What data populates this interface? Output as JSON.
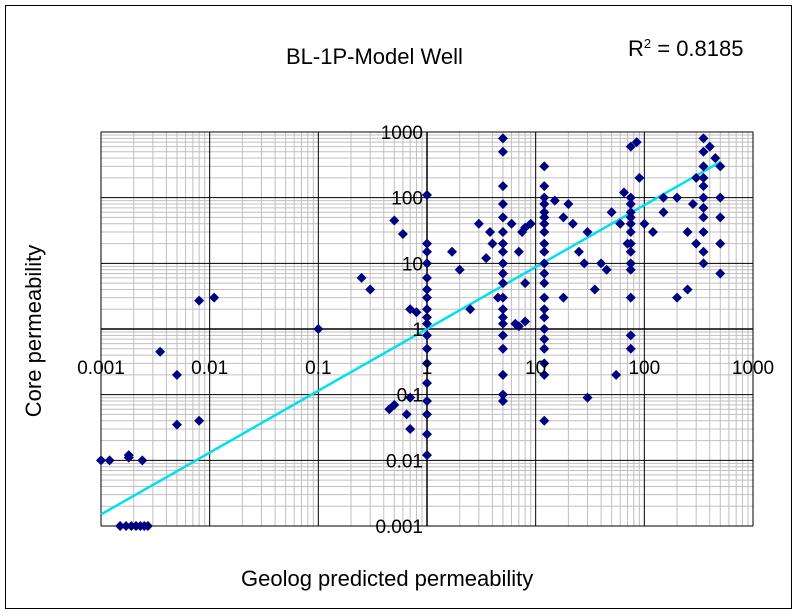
{
  "chart_data": {
    "type": "scatter",
    "title": "BL-1P-Model Well",
    "annotation": {
      "r2_label": "R",
      "r2_sup": "2",
      "r2_value": " = 0.8185"
    },
    "xlabel": "Geolog predicted permeability",
    "ylabel": "Core permeability",
    "xscale": "log",
    "yscale": "log",
    "xlim": [
      0.001,
      1000
    ],
    "ylim": [
      0.001,
      1000
    ],
    "x_ticks": [
      "0.001",
      "0.01",
      "0.1",
      "1",
      "10",
      "100",
      "1000"
    ],
    "y_ticks": [
      "1000",
      "100",
      "10",
      "1",
      "0.1",
      "0.01",
      "0.001"
    ],
    "grid": true,
    "marker_color": "#000080",
    "trend_color": "#00e0f0",
    "trendline": {
      "x": [
        0.001,
        500
      ],
      "y": [
        0.0015,
        350
      ]
    },
    "points": [
      [
        0.001,
        0.01
      ],
      [
        0.0012,
        0.01
      ],
      [
        0.0018,
        0.012
      ],
      [
        0.0018,
        0.011
      ],
      [
        0.0024,
        0.01
      ],
      [
        0.0015,
        0.001
      ],
      [
        0.0017,
        0.001
      ],
      [
        0.0019,
        0.001
      ],
      [
        0.0021,
        0.001
      ],
      [
        0.0023,
        0.001
      ],
      [
        0.0025,
        0.001
      ],
      [
        0.0027,
        0.001
      ],
      [
        0.0035,
        0.45
      ],
      [
        0.005,
        0.2
      ],
      [
        0.005,
        0.035
      ],
      [
        0.008,
        2.7
      ],
      [
        0.011,
        3
      ],
      [
        0.008,
        0.04
      ],
      [
        0.1,
        1
      ],
      [
        0.25,
        6
      ],
      [
        0.3,
        4
      ],
      [
        0.5,
        45
      ],
      [
        0.6,
        28
      ],
      [
        0.7,
        2
      ],
      [
        0.8,
        1.8
      ],
      [
        0.5,
        0.07
      ],
      [
        0.45,
        0.06
      ],
      [
        0.7,
        0.09
      ],
      [
        0.65,
        0.05
      ],
      [
        0.7,
        0.03
      ],
      [
        1,
        110
      ],
      [
        1,
        20
      ],
      [
        1,
        15
      ],
      [
        1,
        10
      ],
      [
        1,
        6
      ],
      [
        1,
        4
      ],
      [
        1,
        3
      ],
      [
        1,
        2
      ],
      [
        1,
        1.5
      ],
      [
        1,
        1.2
      ],
      [
        1,
        0.8
      ],
      [
        1,
        0.5
      ],
      [
        1,
        0.3
      ],
      [
        1,
        0.15
      ],
      [
        1,
        0.08
      ],
      [
        1,
        0.05
      ],
      [
        1,
        0.025
      ],
      [
        1,
        0.012
      ],
      [
        1.7,
        15
      ],
      [
        2,
        8
      ],
      [
        2.5,
        2
      ],
      [
        3,
        40
      ],
      [
        3.5,
        12
      ],
      [
        3.8,
        30
      ],
      [
        5,
        800
      ],
      [
        5,
        500
      ],
      [
        5,
        150
      ],
      [
        5,
        80
      ],
      [
        5,
        50
      ],
      [
        5,
        30
      ],
      [
        5,
        20
      ],
      [
        5,
        15
      ],
      [
        5,
        10
      ],
      [
        5,
        7
      ],
      [
        5,
        5
      ],
      [
        5,
        3
      ],
      [
        5,
        2
      ],
      [
        5,
        1.5
      ],
      [
        5,
        1.2
      ],
      [
        5,
        0.8
      ],
      [
        5,
        0.5
      ],
      [
        5,
        0.2
      ],
      [
        5,
        0.1
      ],
      [
        5,
        0.08
      ],
      [
        4,
        20
      ],
      [
        4.5,
        3
      ],
      [
        6,
        40
      ],
      [
        7,
        15
      ],
      [
        7.5,
        30
      ],
      [
        8,
        5
      ],
      [
        8,
        35
      ],
      [
        9,
        40
      ],
      [
        6.5,
        1.2
      ],
      [
        7,
        1.1
      ],
      [
        8,
        1.3
      ],
      [
        12,
        300
      ],
      [
        12,
        150
      ],
      [
        12,
        100
      ],
      [
        12,
        80
      ],
      [
        12,
        60
      ],
      [
        12,
        50
      ],
      [
        12,
        40
      ],
      [
        12,
        30
      ],
      [
        12,
        20
      ],
      [
        12,
        15
      ],
      [
        12,
        10
      ],
      [
        12,
        7
      ],
      [
        12,
        5
      ],
      [
        12,
        3
      ],
      [
        12,
        2
      ],
      [
        12,
        1.5
      ],
      [
        12,
        1
      ],
      [
        12,
        0.7
      ],
      [
        12,
        0.5
      ],
      [
        12,
        0.3
      ],
      [
        12,
        0.2
      ],
      [
        12,
        0.04
      ],
      [
        15,
        90
      ],
      [
        18,
        50
      ],
      [
        20,
        80
      ],
      [
        22,
        40
      ],
      [
        25,
        15
      ],
      [
        28,
        10
      ],
      [
        30,
        30
      ],
      [
        18,
        3
      ],
      [
        35,
        4
      ],
      [
        40,
        10
      ],
      [
        45,
        8
      ],
      [
        50,
        60
      ],
      [
        55,
        0.2
      ],
      [
        30,
        0.09
      ],
      [
        75,
        600
      ],
      [
        75,
        100
      ],
      [
        75,
        80
      ],
      [
        75,
        60
      ],
      [
        75,
        50
      ],
      [
        75,
        40
      ],
      [
        75,
        30
      ],
      [
        75,
        20
      ],
      [
        75,
        15
      ],
      [
        75,
        10
      ],
      [
        75,
        8
      ],
      [
        75,
        3
      ],
      [
        75,
        0.8
      ],
      [
        75,
        0.5
      ],
      [
        85,
        700
      ],
      [
        90,
        200
      ],
      [
        65,
        120
      ],
      [
        60,
        40
      ],
      [
        70,
        20
      ],
      [
        100,
        40
      ],
      [
        120,
        30
      ],
      [
        150,
        60
      ],
      [
        200,
        3
      ],
      [
        250,
        4
      ],
      [
        350,
        800
      ],
      [
        350,
        500
      ],
      [
        350,
        300
      ],
      [
        350,
        200
      ],
      [
        350,
        150
      ],
      [
        350,
        100
      ],
      [
        350,
        70
      ],
      [
        350,
        50
      ],
      [
        350,
        30
      ],
      [
        350,
        15
      ],
      [
        350,
        10
      ],
      [
        400,
        600
      ],
      [
        450,
        400
      ],
      [
        500,
        300
      ],
      [
        500,
        100
      ],
      [
        500,
        50
      ],
      [
        500,
        20
      ],
      [
        500,
        7
      ],
      [
        300,
        200
      ],
      [
        300,
        20
      ],
      [
        280,
        80
      ],
      [
        250,
        30
      ],
      [
        200,
        100
      ],
      [
        150,
        100
      ]
    ]
  }
}
